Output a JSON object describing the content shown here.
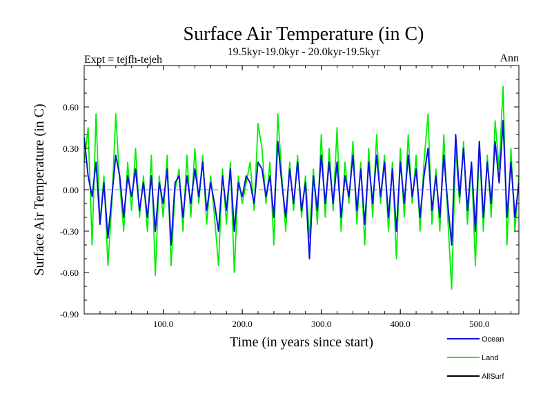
{
  "chart_data": {
    "type": "line",
    "title": "Surface Air Temperature (in C)",
    "subtitle": "19.5kyr-19.0kyr - 20.0kyr-19.5kyr",
    "expt_label": "Expt = tejfh-tejeh",
    "season_label": "Ann",
    "xlabel": "Time (in years since start)",
    "ylabel": "Surface Air Temperature (in C)",
    "xlim": [
      0,
      550
    ],
    "ylim": [
      -0.9,
      0.9
    ],
    "xticks": [
      100,
      200,
      300,
      400,
      500
    ],
    "xtick_labels": [
      "100.0",
      "200.0",
      "300.0",
      "400.0",
      "500.0"
    ],
    "yticks": [
      -0.9,
      -0.6,
      -0.3,
      0.0,
      0.3,
      0.6
    ],
    "ytick_labels": [
      "-0.90",
      "-0.60",
      "-0.30",
      "0.00",
      "0.30",
      "0.60"
    ],
    "zero_line": true,
    "legend_position": "bottom-right",
    "colors": {
      "Ocean": "#1010e0",
      "Land": "#00ee00",
      "AllSurf": "#000000",
      "zero": "#3ca0a0"
    },
    "series": [
      {
        "name": "Land",
        "x": [
          0,
          5,
          10,
          15,
          20,
          25,
          30,
          35,
          40,
          45,
          50,
          55,
          60,
          65,
          70,
          75,
          80,
          85,
          90,
          95,
          100,
          105,
          110,
          115,
          120,
          125,
          130,
          135,
          140,
          145,
          150,
          155,
          160,
          165,
          170,
          175,
          180,
          185,
          190,
          195,
          200,
          205,
          210,
          215,
          220,
          225,
          230,
          235,
          240,
          245,
          250,
          255,
          260,
          265,
          270,
          275,
          280,
          285,
          290,
          295,
          300,
          305,
          310,
          315,
          320,
          325,
          330,
          335,
          340,
          345,
          350,
          355,
          360,
          365,
          370,
          375,
          380,
          385,
          390,
          395,
          400,
          405,
          410,
          415,
          420,
          425,
          430,
          435,
          440,
          445,
          450,
          455,
          460,
          465,
          470,
          475,
          480,
          485,
          490,
          495,
          500,
          505,
          510,
          515,
          520,
          525,
          530,
          535,
          540,
          545,
          550
        ],
        "values": [
          0.2,
          0.45,
          -0.4,
          0.55,
          -0.25,
          0.1,
          -0.55,
          -0.1,
          0.55,
          0.05,
          -0.3,
          0.2,
          -0.15,
          0.3,
          -0.2,
          0.1,
          -0.3,
          0.25,
          -0.62,
          0.1,
          -0.2,
          0.25,
          -0.55,
          0.0,
          0.15,
          -0.3,
          0.25,
          -0.2,
          0.3,
          -0.1,
          0.25,
          -0.25,
          0.1,
          -0.2,
          -0.55,
          0.15,
          -0.25,
          0.2,
          -0.6,
          0.1,
          -0.1,
          0.05,
          0.2,
          -0.15,
          0.48,
          0.3,
          -0.1,
          0.2,
          -0.4,
          0.55,
          0.1,
          -0.3,
          0.2,
          -0.15,
          0.25,
          -0.2,
          0.1,
          -0.35,
          0.15,
          -0.25,
          0.4,
          -0.2,
          0.3,
          -0.15,
          0.45,
          -0.3,
          0.2,
          -0.1,
          0.35,
          -0.25,
          0.2,
          -0.4,
          0.3,
          -0.2,
          0.4,
          -0.1,
          0.25,
          -0.3,
          0.2,
          -0.5,
          0.3,
          -0.2,
          0.4,
          -0.1,
          0.25,
          -0.3,
          0.2,
          0.55,
          -0.25,
          0.15,
          -0.3,
          0.4,
          -0.2,
          -0.72,
          0.3,
          -0.1,
          0.35,
          -0.25,
          0.2,
          -0.55,
          0.35,
          -0.3,
          0.25,
          -0.2,
          0.5,
          0.15,
          0.75,
          -0.4,
          0.3,
          -0.3,
          0.1
        ]
      },
      {
        "name": "Ocean",
        "x": [
          0,
          5,
          10,
          15,
          20,
          25,
          30,
          35,
          40,
          45,
          50,
          55,
          60,
          65,
          70,
          75,
          80,
          85,
          90,
          95,
          100,
          105,
          110,
          115,
          120,
          125,
          130,
          135,
          140,
          145,
          150,
          155,
          160,
          165,
          170,
          175,
          180,
          185,
          190,
          195,
          200,
          205,
          210,
          215,
          220,
          225,
          230,
          235,
          240,
          245,
          250,
          255,
          260,
          265,
          270,
          275,
          280,
          285,
          290,
          295,
          300,
          305,
          310,
          315,
          320,
          325,
          330,
          335,
          340,
          345,
          350,
          355,
          360,
          365,
          370,
          375,
          380,
          385,
          390,
          395,
          400,
          405,
          410,
          415,
          420,
          425,
          430,
          435,
          440,
          445,
          450,
          455,
          460,
          465,
          470,
          475,
          480,
          485,
          490,
          495,
          500,
          505,
          510,
          515,
          520,
          525,
          530,
          535,
          540,
          545,
          550
        ],
        "values": [
          0.38,
          0.1,
          -0.05,
          0.2,
          -0.25,
          0.05,
          -0.35,
          -0.05,
          0.25,
          0.1,
          -0.2,
          0.1,
          -0.05,
          0.15,
          -0.15,
          0.05,
          -0.2,
          0.1,
          -0.3,
          0.05,
          -0.1,
          0.15,
          -0.4,
          0.05,
          0.1,
          -0.2,
          0.1,
          -0.1,
          0.15,
          -0.05,
          0.2,
          -0.15,
          0.05,
          -0.1,
          -0.3,
          0.1,
          -0.15,
          0.15,
          -0.3,
          0.05,
          -0.05,
          0.1,
          0.05,
          -0.1,
          0.2,
          0.15,
          -0.05,
          0.1,
          -0.2,
          0.35,
          0.05,
          -0.2,
          0.15,
          -0.1,
          0.2,
          -0.15,
          0.05,
          -0.5,
          0.1,
          -0.15,
          0.25,
          -0.1,
          0.2,
          -0.1,
          0.2,
          -0.2,
          0.1,
          -0.05,
          0.25,
          -0.15,
          0.15,
          -0.25,
          0.2,
          -0.1,
          0.25,
          -0.05,
          0.2,
          -0.2,
          0.15,
          -0.3,
          0.2,
          -0.1,
          0.25,
          -0.05,
          0.15,
          -0.2,
          0.1,
          0.3,
          -0.15,
          0.1,
          -0.2,
          0.25,
          -0.1,
          -0.4,
          0.4,
          -0.05,
          0.3,
          -0.15,
          0.2,
          -0.3,
          0.35,
          -0.2,
          0.2,
          -0.1,
          0.35,
          0.05,
          0.5,
          -0.2,
          0.2,
          -0.2,
          0.05
        ]
      }
    ]
  }
}
